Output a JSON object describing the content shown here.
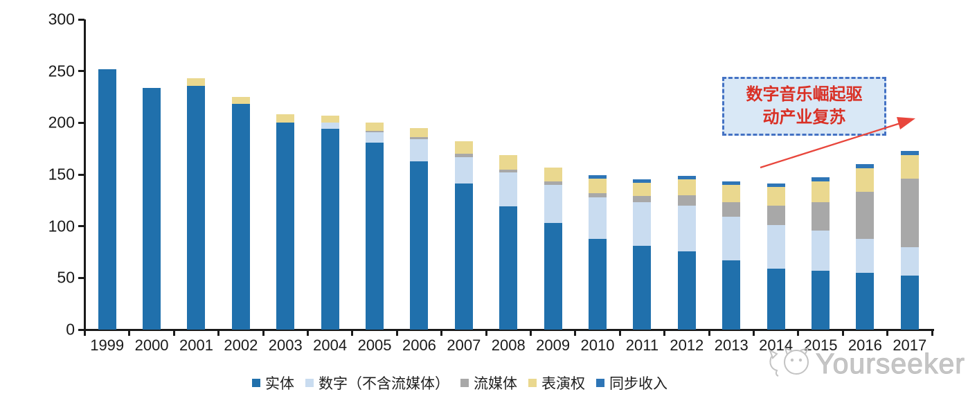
{
  "watermark": {
    "brand": "Yourseeker"
  },
  "annotation": {
    "line1": "数字音乐崛起驱",
    "line2": "动产业复苏",
    "text_color": "#D93025",
    "box_fill": "#D9E8F6",
    "box_border": "#4472C4",
    "arrow_color": "#E8463C"
  },
  "legend": [
    {
      "label": "实体",
      "color": "#2070AC"
    },
    {
      "label": "数字（不含流媒体）",
      "color": "#C9DCF0"
    },
    {
      "label": "流媒体",
      "color": "#A8A8A8"
    },
    {
      "label": "表演权",
      "color": "#EAD88F"
    },
    {
      "label": "同步收入",
      "color": "#2E75B6"
    }
  ],
  "chart_data": {
    "type": "bar",
    "stacked": true,
    "title": "",
    "xlabel": "",
    "ylabel": "",
    "ylim": [
      0,
      300
    ],
    "yticks": [
      0,
      50,
      100,
      150,
      200,
      250,
      300
    ],
    "grid": false,
    "legend_position": "bottom",
    "categories": [
      "1999",
      "2000",
      "2001",
      "2002",
      "2003",
      "2004",
      "2005",
      "2006",
      "2007",
      "2008",
      "2009",
      "2010",
      "2011",
      "2012",
      "2013",
      "2014",
      "2015",
      "2016",
      "2017"
    ],
    "series": [
      {
        "name": "实体",
        "color": "#2070AC",
        "values": [
          252,
          234,
          236,
          218,
          200,
          194,
          181,
          163,
          141,
          119,
          103,
          88,
          81,
          76,
          67,
          59,
          57,
          55,
          52
        ]
      },
      {
        "name": "数字（不含流媒体）",
        "color": "#C9DCF0",
        "values": [
          0,
          0,
          0,
          0,
          0,
          6,
          10,
          21,
          26,
          33,
          37,
          40,
          42,
          44,
          42,
          42,
          39,
          33,
          28
        ]
      },
      {
        "name": "流媒体",
        "color": "#A8A8A8",
        "values": [
          0,
          0,
          0,
          0,
          0,
          0,
          1.5,
          2,
          3,
          3,
          3.5,
          4,
          6,
          10,
          14,
          19,
          27,
          45,
          66
        ]
      },
      {
        "name": "表演权",
        "color": "#EAD88F",
        "values": [
          0,
          0,
          7,
          7,
          8,
          7,
          8,
          9,
          12,
          14,
          13.5,
          14,
          13,
          15,
          17,
          18,
          20,
          23,
          23
        ]
      },
      {
        "name": "同步收入",
        "color": "#2E75B6",
        "values": [
          0,
          0,
          0,
          0,
          0,
          0,
          0,
          0,
          0,
          0,
          0,
          3,
          3,
          3.5,
          3.5,
          3.5,
          4,
          4,
          3.5
        ]
      }
    ]
  }
}
